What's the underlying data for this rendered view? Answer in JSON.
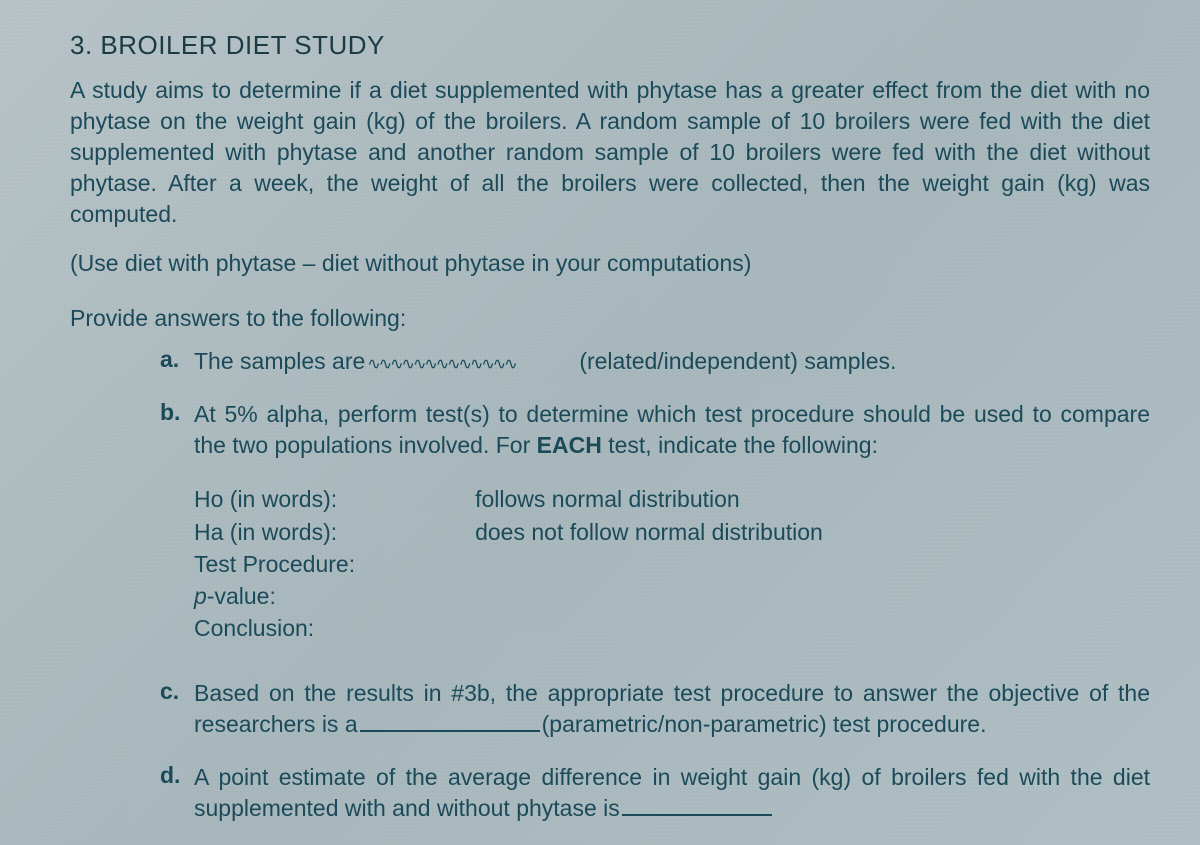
{
  "title": "3.  BROILER DIET STUDY",
  "paragraph": "A study aims to determine if a diet supplemented with phytase has a greater effect from the diet with no phytase on the weight gain (kg) of the broilers. A random sample of 10 broilers were fed with the diet supplemented with phytase and another random sample of 10 broilers were fed with the diet without phytase. After a week, the weight of all the broilers were collected, then the weight gain (kg) was computed.",
  "note": "(Use diet with phytase – diet without phytase in your computations)",
  "lead": "Provide answers to the following:",
  "items": {
    "a": {
      "letter": "a.",
      "pre": "The samples are",
      "post": "(related/independent) samples."
    },
    "b": {
      "letter": "b.",
      "text_pre": "At 5% alpha, perform test(s) to determine which test procedure should be used to compare the two populations involved. For ",
      "each": "EACH",
      "text_post": " test, indicate the following:",
      "left": {
        "l1": "Ho (in words):",
        "l2": "Ha (in words):",
        "l3": "Test Procedure:",
        "l4_pre": "p",
        "l4_post": "-value:",
        "l5": "Conclusion:"
      },
      "right": {
        "r1": "follows normal distribution",
        "r2": "does not follow normal distribution"
      }
    },
    "c": {
      "letter": "c.",
      "pre": "Based on the results in #3b, the appropriate test procedure to answer the objective of the researchers is a",
      "post": "(parametric/non-parametric) test procedure."
    },
    "d": {
      "letter": "d.",
      "text": "A point estimate of the average difference in weight gain (kg) of broilers fed with the diet supplemented with and without phytase is"
    }
  },
  "colors": {
    "text": "#1a4a5a",
    "bg_a": "#b8c4c8",
    "bg_b": "#a8b8bc"
  },
  "typography": {
    "title_fontsize": 26,
    "body_fontsize": 23,
    "font_family": "Arial"
  }
}
